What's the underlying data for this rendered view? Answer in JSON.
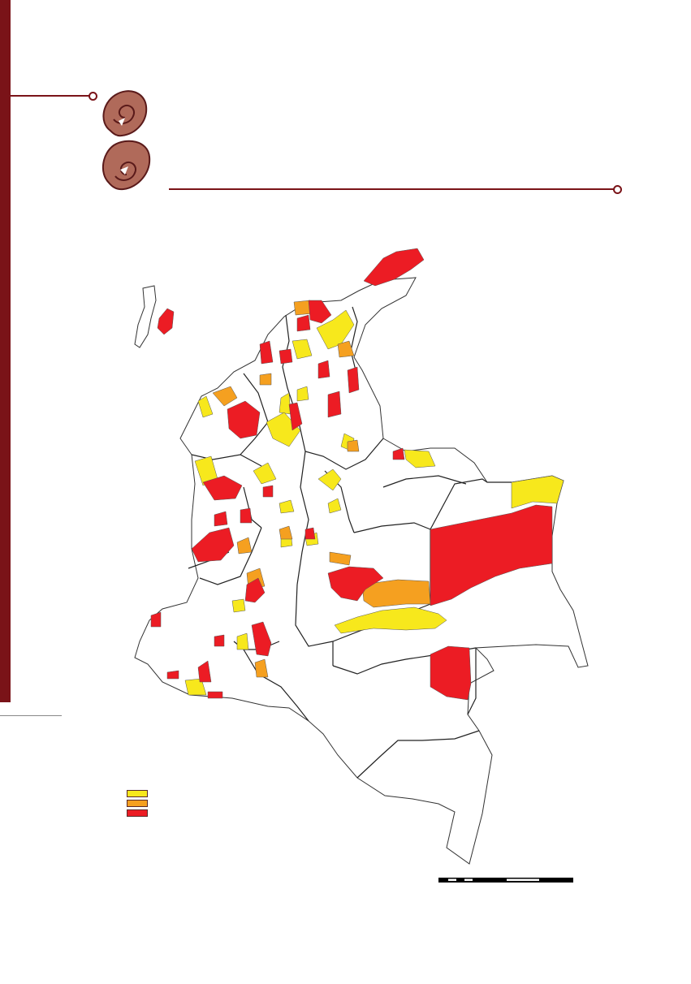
{
  "colors": {
    "brand": "#7a1318",
    "risk_low": "#f7e81c",
    "risk_medium": "#f5a020",
    "risk_high": "#ec1c24",
    "boundary": "#222222"
  },
  "decorations": {
    "logo_icon": "double-spiral-icon"
  },
  "legend": {
    "items": [
      {
        "color_key": "risk_low",
        "label": ""
      },
      {
        "color_key": "risk_medium",
        "label": ""
      },
      {
        "color_key": "risk_high",
        "label": ""
      }
    ]
  },
  "scale_bar": {
    "segments": 6
  }
}
